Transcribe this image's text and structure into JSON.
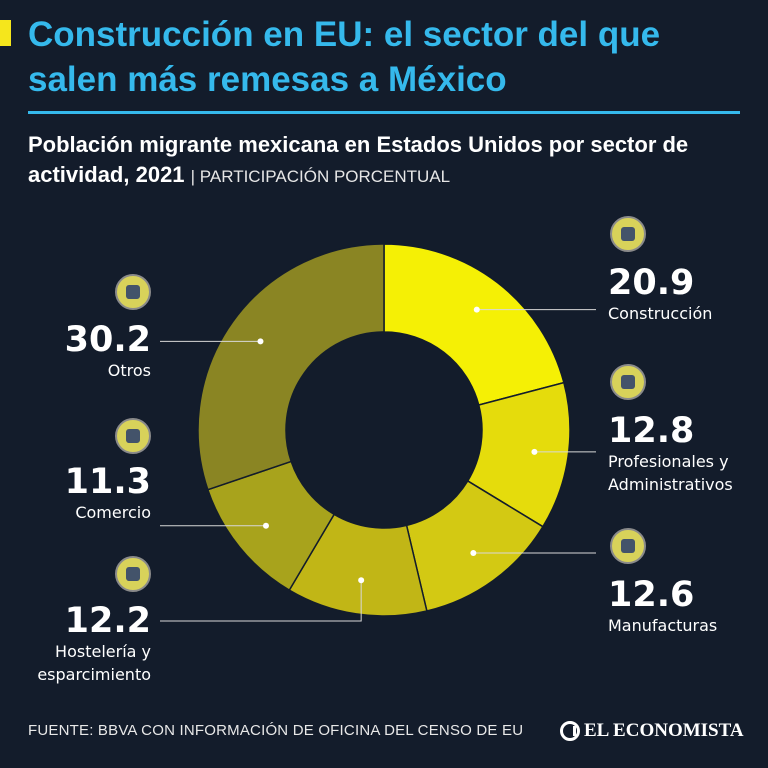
{
  "header": {
    "title": "Construcción en EU: el sector del que salen más remesas a México",
    "subtitle": "Población migrante mexicana en Estados Unidos por sector de actividad, 2021",
    "subtitle_unit": "| PARTICIPACIÓN PORCENTUAL"
  },
  "colors": {
    "background": "#131c2b",
    "title": "#35b9ec",
    "accent": "#f5e61c"
  },
  "chart_data": {
    "type": "pie",
    "title": "Población migrante mexicana en Estados Unidos por sector de actividad, 2021",
    "unit": "PARTICIPACIÓN PORCENTUAL",
    "slices": [
      {
        "label": "Construcción",
        "value": 20.9,
        "value_text": "20.9",
        "color": "#f5f005",
        "icon": "tools-worker-icon"
      },
      {
        "label": "Profesionales y Administrativos",
        "label_lines": [
          "Profesionales y",
          "Administrativos"
        ],
        "value": 12.8,
        "value_text": "12.8",
        "color": "#e5dc0c",
        "icon": "team-meeting-icon"
      },
      {
        "label": "Manufacturas",
        "value": 12.6,
        "value_text": "12.6",
        "color": "#d3c913",
        "icon": "assembly-line-icon"
      },
      {
        "label": "Hostelería y esparcimiento",
        "label_lines": [
          "Hostelería y",
          "esparcimiento"
        ],
        "value": 12.2,
        "value_text": "12.2",
        "color": "#c1b616",
        "icon": "hotel-reception-icon"
      },
      {
        "label": "Comercio",
        "value": 11.3,
        "value_text": "11.3",
        "color": "#a8a31c",
        "icon": "money-exchange-icon"
      },
      {
        "label": "Otros",
        "value": 30.2,
        "value_text": "30.2",
        "color": "#8a8523",
        "icon": "mobile-payment-icon"
      }
    ]
  },
  "footer": {
    "source": "FUENTE: BBVA CON INFORMACIÓN DE OFICINA DEL CENSO DE EU",
    "brand": "EL ECONOMISTA"
  }
}
